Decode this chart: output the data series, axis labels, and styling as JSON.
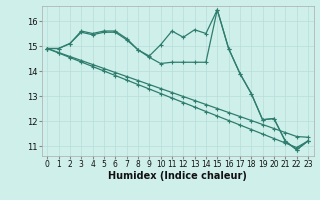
{
  "xlabel": "Humidex (Indice chaleur)",
  "bg_color": "#cff0ea",
  "line_color": "#2e7d6e",
  "grid_color": "#b8ddd8",
  "xlim": [
    -0.5,
    23.5
  ],
  "ylim": [
    10.6,
    16.6
  ],
  "yticks": [
    11,
    12,
    13,
    14,
    15,
    16
  ],
  "xticks": [
    0,
    1,
    2,
    3,
    4,
    5,
    6,
    7,
    8,
    9,
    10,
    11,
    12,
    13,
    14,
    15,
    16,
    17,
    18,
    19,
    20,
    21,
    22,
    23
  ],
  "line1_x": [
    0,
    1,
    2,
    3,
    4,
    5,
    6,
    7,
    8,
    9,
    10,
    11,
    12,
    13,
    14,
    15,
    16,
    17,
    18,
    19,
    20,
    21,
    22,
    23
  ],
  "line1_y": [
    14.9,
    14.9,
    15.1,
    15.6,
    15.5,
    15.6,
    15.6,
    15.3,
    14.85,
    14.6,
    15.05,
    15.6,
    15.35,
    15.65,
    15.5,
    16.45,
    14.9,
    13.9,
    13.1,
    12.05,
    12.1,
    11.2,
    10.85,
    11.2
  ],
  "line2_x": [
    0,
    1,
    2,
    3,
    4,
    5,
    6,
    7,
    8,
    9,
    10,
    11,
    12,
    13,
    14,
    15,
    16,
    17,
    18,
    19,
    20,
    21,
    22,
    23
  ],
  "line2_y": [
    14.9,
    14.9,
    15.1,
    15.55,
    15.45,
    15.55,
    15.55,
    15.25,
    14.85,
    14.55,
    14.3,
    14.35,
    14.35,
    14.35,
    14.35,
    16.45,
    14.9,
    13.9,
    13.1,
    12.05,
    12.1,
    11.2,
    10.85,
    11.2
  ],
  "line3_x": [
    0,
    1,
    2,
    3,
    4,
    5,
    6,
    7,
    8,
    9,
    10,
    11,
    12,
    13,
    14,
    15,
    16,
    17,
    18,
    19,
    20,
    21,
    22,
    23
  ],
  "line3_y": [
    14.9,
    14.72,
    14.54,
    14.36,
    14.18,
    14.0,
    13.82,
    13.64,
    13.46,
    13.28,
    13.1,
    12.92,
    12.74,
    12.56,
    12.38,
    12.2,
    12.02,
    11.84,
    11.66,
    11.48,
    11.3,
    11.12,
    10.94,
    11.2
  ],
  "line4_x": [
    0,
    1,
    2,
    3,
    4,
    5,
    6,
    7,
    8,
    9,
    10,
    11,
    12,
    13,
    14,
    15,
    16,
    17,
    18,
    19,
    20,
    21,
    22,
    23
  ],
  "line4_y": [
    14.9,
    14.74,
    14.58,
    14.42,
    14.26,
    14.1,
    13.94,
    13.78,
    13.62,
    13.46,
    13.3,
    13.14,
    12.98,
    12.82,
    12.66,
    12.5,
    12.34,
    12.18,
    12.02,
    11.86,
    11.7,
    11.54,
    11.38,
    11.35
  ]
}
